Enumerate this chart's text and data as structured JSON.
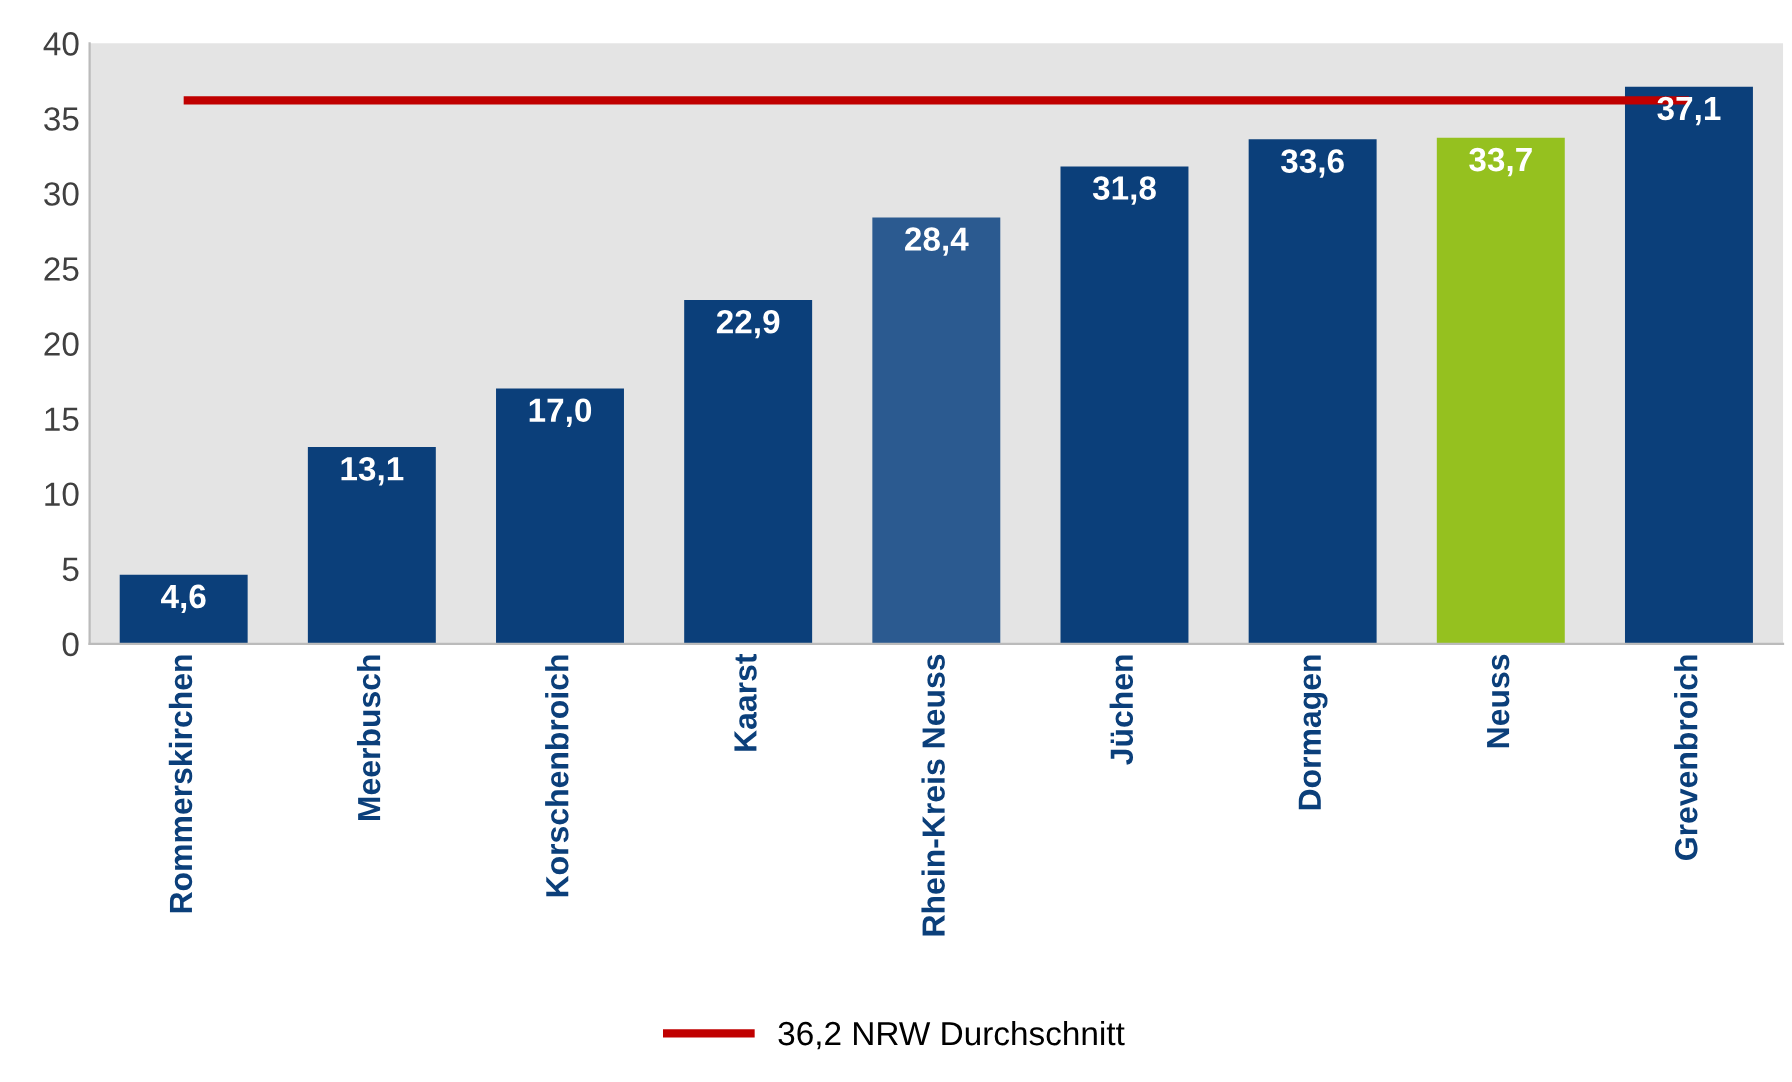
{
  "chart_data": {
    "type": "bar",
    "categories": [
      "Rommerskirchen",
      "Meerbusch",
      "Korschenbroich",
      "Kaarst",
      "Rhein-Kreis Neuss",
      "Jüchen",
      "Dormagen",
      "Neuss",
      "Grevenbroich"
    ],
    "values": [
      4.6,
      13.1,
      17.0,
      22.9,
      28.4,
      31.8,
      33.6,
      33.7,
      37.1
    ],
    "colors": [
      "#0b3f7a",
      "#0b3f7a",
      "#0b3f7a",
      "#0b3f7a",
      "#2b5a90",
      "#0b3f7a",
      "#0b3f7a",
      "#95c11f",
      "#0b3f7a"
    ],
    "value_labels": [
      "4,6",
      "13,1",
      "17,0",
      "22,9",
      "28,4",
      "31,8",
      "33,6",
      "33,7",
      "37,1"
    ],
    "ylim": [
      0,
      40
    ],
    "yticks": [
      0,
      5,
      10,
      15,
      20,
      25,
      30,
      35,
      40
    ],
    "ref_lines": [
      {
        "axis": "y",
        "value": 36.2,
        "label": "36,2 NRW Durchschnitt",
        "color": "#c00000"
      }
    ],
    "legend": "bottom",
    "grid": false
  }
}
